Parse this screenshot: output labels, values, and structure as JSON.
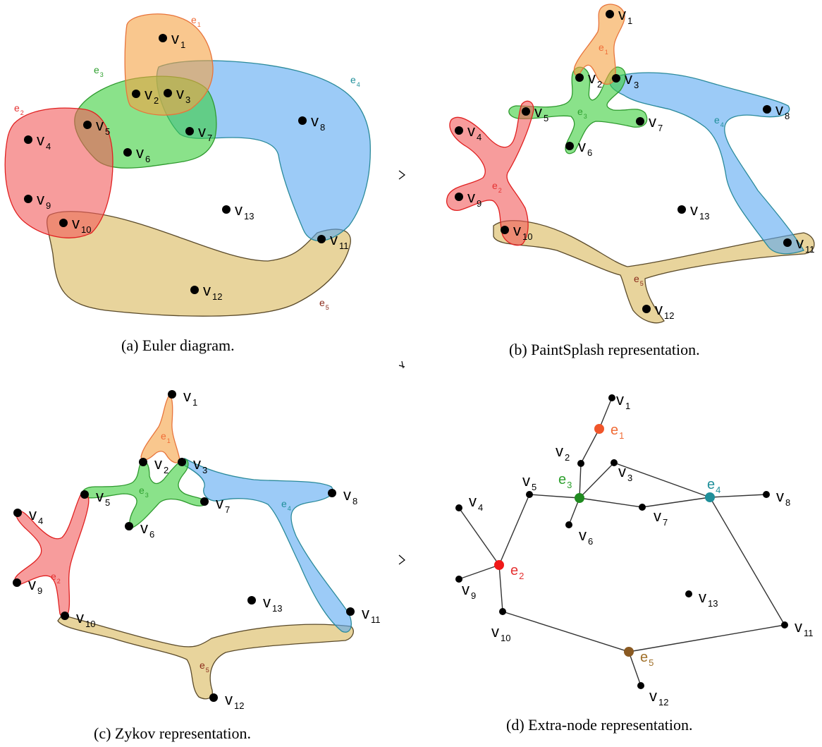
{
  "captions": {
    "a": "(a) Euler diagram.",
    "b": "(b) PaintSplash representation.",
    "c": "(c) Zykov representation.",
    "d": "(d) Extra-node representation."
  },
  "vertex_letter": "v",
  "edge_letter": "e",
  "hyperedges": [
    {
      "id": "e1",
      "sub": "1",
      "color": "#f5a142",
      "stroke": "#e8743b",
      "label_color": "#f06b35",
      "members": [
        "v1",
        "v2"
      ]
    },
    {
      "id": "e2",
      "sub": "2",
      "color": "#f25a5a",
      "stroke": "#e02020",
      "label_color": "#e53232",
      "members": [
        "v4",
        "v5",
        "v9",
        "v10"
      ]
    },
    {
      "id": "e3",
      "sub": "3",
      "color": "#3ccf3c",
      "stroke": "#2f9a2f",
      "label_color": "#2ea02e",
      "members": [
        "v2",
        "v3",
        "v5",
        "v6",
        "v7"
      ]
    },
    {
      "id": "e4",
      "sub": "4",
      "color": "#5aa9f2",
      "stroke": "#2a8a9a",
      "label_color": "#1f8f9a",
      "members": [
        "v3",
        "v7",
        "v8",
        "v11"
      ]
    },
    {
      "id": "e5",
      "sub": "5",
      "color": "#d9b75a",
      "stroke": "#5a4a2a",
      "label_color": "#8a2a1a",
      "members": [
        "v10",
        "v11",
        "v12"
      ]
    }
  ],
  "extra_node_colors": {
    "e1": "#f0552a",
    "e2": "#f01818",
    "e3": "#1f8a1f",
    "e4": "#1f8f9a",
    "e5": "#8a5a22"
  },
  "extra_node_label_colors": {
    "e1": "#f06b35",
    "e2": "#e53232",
    "e3": "#2ea02e",
    "e4": "#1f8f9a",
    "e5": "#a0702a"
  },
  "vertices": [
    "v1",
    "v2",
    "v3",
    "v4",
    "v5",
    "v6",
    "v7",
    "v8",
    "v9",
    "v10",
    "v11",
    "v12",
    "v13"
  ]
}
